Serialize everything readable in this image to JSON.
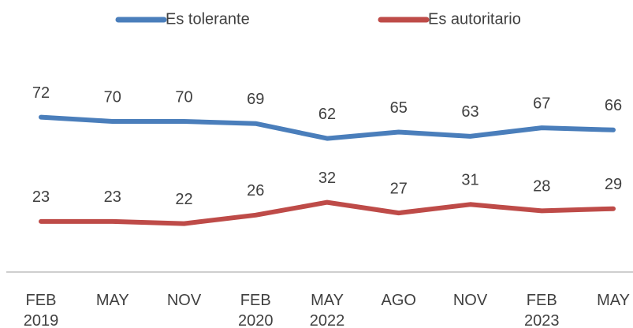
{
  "chart_data": {
    "type": "line",
    "categories": [
      "FEB 2019",
      "MAY",
      "NOV",
      "FEB 2020",
      "MAY 2022",
      "AGO",
      "NOV",
      "FEB 2023",
      "MAY"
    ],
    "series": [
      {
        "name": "Es tolerante",
        "color": "#4a7ebb",
        "values": [
          72,
          70,
          70,
          69,
          62,
          65,
          63,
          67,
          66
        ]
      },
      {
        "name": "Es autoritario",
        "color": "#be4b48",
        "values": [
          23,
          23,
          22,
          26,
          32,
          27,
          31,
          28,
          29
        ]
      }
    ],
    "ylim": [
      0,
      100
    ],
    "legend": "top"
  }
}
